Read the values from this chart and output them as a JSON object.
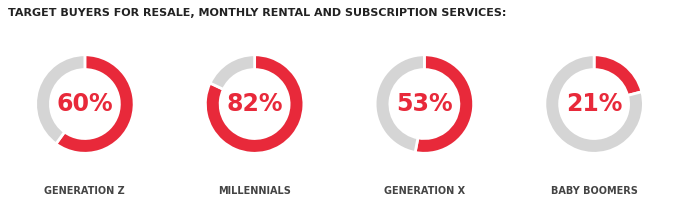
{
  "title": "TARGET BUYERS FOR RESALE, MONTHLY RENTAL AND SUBSCRIPTION SERVICES:",
  "title_fontsize": 8.0,
  "title_color": "#222222",
  "background_color": "#ffffff",
  "charts": [
    {
      "label": "GENERATION Z",
      "value": 60,
      "text": "60%"
    },
    {
      "label": "MILLENNIALS",
      "value": 82,
      "text": "82%"
    },
    {
      "label": "GENERATION X",
      "value": 53,
      "text": "53%"
    },
    {
      "label": "BABY BOOMERS",
      "value": 21,
      "text": "21%"
    }
  ],
  "red_color": "#E8293A",
  "gray_color": "#D5D5D5",
  "pct_fontsize": 17,
  "label_fontsize": 7.0,
  "label_color": "#444444",
  "donut_width": 0.3,
  "start_angle": 90
}
